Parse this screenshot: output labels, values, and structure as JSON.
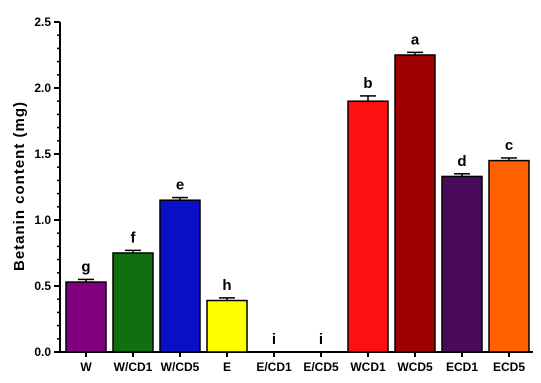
{
  "chart_data": {
    "type": "bar",
    "ylabel": "Betanin content (mg)",
    "xlabel": "",
    "title": "",
    "ylim": [
      0,
      2.5
    ],
    "yticks": [
      "0.0",
      "0.5",
      "1.0",
      "1.5",
      "2.0",
      "2.5"
    ],
    "grid": false,
    "legend": "none",
    "categories": [
      "W",
      "W/CD1",
      "W/CD5",
      "E",
      "E/CD1",
      "E/CD5",
      "WCD1",
      "WCD5",
      "ECD1",
      "ECD5"
    ],
    "values": [
      0.53,
      0.75,
      1.15,
      0.39,
      0,
      0,
      1.9,
      2.25,
      1.33,
      1.45
    ],
    "errors": [
      0.02,
      0.02,
      0.02,
      0.02,
      0,
      0,
      0.04,
      0.02,
      0.02,
      0.02
    ],
    "significance_labels": [
      "g",
      "f",
      "e",
      "h",
      "i",
      "i",
      "b",
      "a",
      "d",
      "c"
    ],
    "colors": [
      "#800080",
      "#107010",
      "#0a10c8",
      "#ffff00",
      "#ffffff",
      "#ffffff",
      "#ff1010",
      "#a00000",
      "#4a0a5a",
      "#ff6000"
    ]
  }
}
